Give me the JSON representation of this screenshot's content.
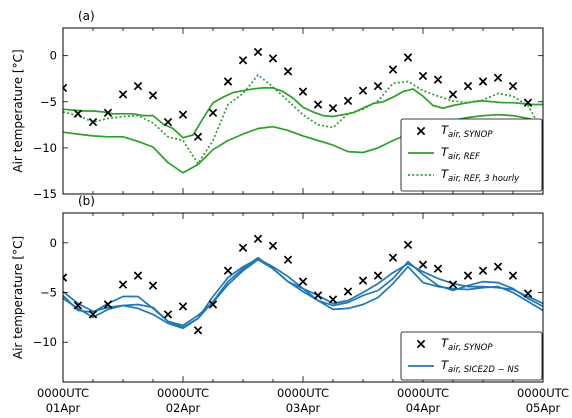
{
  "chart_data": [
    {
      "type": "line",
      "panel_label": "(a)",
      "ylabel": "Air temperature [°C]",
      "ylim": [
        -15,
        3
      ],
      "yticks": [
        0,
        -5,
        -10,
        -15
      ],
      "xlim": [
        0,
        96
      ],
      "x_ticks": [
        {
          "x": 0,
          "line1": "0000UTC",
          "line2": "01Apr"
        },
        {
          "x": 24,
          "line1": "0000UTC",
          "line2": "02Apr"
        },
        {
          "x": 48,
          "line1": "0000UTC",
          "line2": "03Apr"
        },
        {
          "x": 72,
          "line1": "0000UTC",
          "line2": "04Apr"
        },
        {
          "x": 96,
          "line1": "0000UTC",
          "line2": "05Apr"
        }
      ],
      "x_minor_ticks": [
        6,
        12,
        18,
        30,
        36,
        42,
        54,
        60,
        66,
        78,
        84,
        90
      ],
      "legend": {
        "position": "lower-right",
        "entries": [
          {
            "base": "T",
            "sub": "air, SYNOP",
            "style": "marker",
            "color": "#000000"
          },
          {
            "base": "T",
            "sub": "air, REF",
            "style": "solid",
            "color": "#2ca02c"
          },
          {
            "base": "T",
            "sub": "air, REF, 3 hourly",
            "style": "dotted",
            "color": "#2ca02c"
          }
        ]
      },
      "series": [
        {
          "style": "marker",
          "color": "#000000",
          "x": [
            0,
            3,
            6,
            9,
            12,
            15,
            18,
            21,
            24,
            27,
            30,
            33,
            36,
            39,
            42,
            45,
            48,
            51,
            54,
            57,
            60,
            63,
            66,
            69,
            72,
            75,
            78,
            81,
            84,
            87,
            90,
            93
          ],
          "y": [
            -3.5,
            -6.3,
            -7.2,
            -6.2,
            -4.2,
            -3.3,
            -4.3,
            -7.2,
            -6.4,
            -8.8,
            -6.2,
            -2.8,
            -0.5,
            0.4,
            -0.3,
            -1.7,
            -3.9,
            -5.3,
            -5.7,
            -4.9,
            -3.8,
            -3.3,
            -1.5,
            -0.2,
            -2.2,
            -2.6,
            -4.2,
            -3.3,
            -2.8,
            -2.4,
            -3.3,
            -5.1
          ]
        },
        {
          "style": "solid",
          "color": "#2ca02c",
          "x": [
            0,
            2,
            4,
            6,
            8,
            10,
            12,
            14,
            16,
            18,
            20,
            22,
            24,
            26,
            28,
            30,
            32,
            34,
            36,
            38,
            40,
            42,
            44,
            46,
            48,
            50,
            52,
            54,
            56,
            58,
            60,
            62,
            64,
            66,
            68,
            70,
            72,
            74,
            76,
            78,
            80,
            82,
            84,
            86,
            88,
            90,
            92,
            94,
            96
          ],
          "y": [
            -5.8,
            -5.9,
            -6.0,
            -6.0,
            -6.1,
            -6.3,
            -6.3,
            -6.3,
            -6.5,
            -6.5,
            -7.4,
            -7.9,
            -8.9,
            -8.6,
            -6.8,
            -5.1,
            -4.5,
            -4.0,
            -3.8,
            -3.6,
            -3.5,
            -3.5,
            -3.9,
            -4.6,
            -5.6,
            -6.1,
            -6.5,
            -6.6,
            -6.4,
            -6.2,
            -5.7,
            -5.2,
            -5.0,
            -4.5,
            -3.9,
            -3.6,
            -4.4,
            -5.4,
            -5.7,
            -5.4,
            -5.2,
            -5.0,
            -4.9,
            -5.0,
            -5.1,
            -5.1,
            -5.2,
            -5.3,
            -5.3
          ]
        },
        {
          "style": "solid",
          "color": "#2ca02c",
          "x": [
            0,
            3,
            6,
            9,
            12,
            15,
            18,
            21,
            24,
            27,
            30,
            33,
            36,
            39,
            42,
            45,
            48,
            51,
            54,
            57,
            60,
            63,
            66,
            69,
            72,
            75,
            78,
            81,
            84,
            87,
            90,
            93,
            96
          ],
          "y": [
            -8.3,
            -8.5,
            -8.7,
            -8.8,
            -8.8,
            -9.3,
            -9.9,
            -11.6,
            -12.7,
            -11.8,
            -10.2,
            -9.2,
            -8.5,
            -7.9,
            -7.7,
            -8.1,
            -8.7,
            -9.2,
            -9.7,
            -10.4,
            -10.5,
            -10.0,
            -9.2,
            -8.5,
            -8.0,
            -7.6,
            -7.0,
            -6.7,
            -6.5,
            -6.4,
            -6.5,
            -6.8,
            -7.2
          ]
        },
        {
          "style": "dotted",
          "color": "#2ca02c",
          "x": [
            0,
            3,
            6,
            9,
            12,
            15,
            18,
            21,
            24,
            27,
            30,
            33,
            36,
            39,
            42,
            45,
            48,
            51,
            54,
            57,
            60,
            63,
            66,
            69,
            72,
            75,
            78,
            81,
            84,
            87,
            90,
            93,
            96
          ],
          "y": [
            -6.1,
            -6.5,
            -7.2,
            -6.8,
            -6.6,
            -6.5,
            -7.3,
            -8.8,
            -9.2,
            -11.7,
            -9.2,
            -5.3,
            -4.1,
            -2.1,
            -3.4,
            -4.9,
            -6.4,
            -7.5,
            -7.8,
            -6.3,
            -5.8,
            -4.9,
            -3.0,
            -2.8,
            -3.8,
            -4.4,
            -4.9,
            -5.1,
            -4.8,
            -4.1,
            -4.4,
            -5.4,
            -8.3
          ]
        }
      ]
    },
    {
      "type": "line",
      "panel_label": "(b)",
      "ylabel": "Air temperature [°C]",
      "ylim": [
        -14,
        3
      ],
      "yticks": [
        0,
        -5,
        -10
      ],
      "xlim": [
        0,
        96
      ],
      "x_ticks": [
        {
          "x": 0,
          "line1": "0000UTC",
          "line2": "01Apr"
        },
        {
          "x": 24,
          "line1": "0000UTC",
          "line2": "02Apr"
        },
        {
          "x": 48,
          "line1": "0000UTC",
          "line2": "03Apr"
        },
        {
          "x": 72,
          "line1": "0000UTC",
          "line2": "04Apr"
        },
        {
          "x": 96,
          "line1": "0000UTC",
          "line2": "05Apr"
        }
      ],
      "x_minor_ticks": [
        6,
        12,
        18,
        30,
        36,
        42,
        54,
        60,
        66,
        78,
        84,
        90
      ],
      "legend": {
        "position": "lower-right",
        "entries": [
          {
            "base": "T",
            "sub": "air, SYNOP",
            "style": "marker",
            "color": "#000000"
          },
          {
            "base": "T",
            "sub": "air, SICE2D − NS",
            "style": "solid",
            "color": "#1f77b4"
          }
        ]
      },
      "series": [
        {
          "style": "marker",
          "color": "#000000",
          "x": [
            0,
            3,
            6,
            9,
            12,
            15,
            18,
            21,
            24,
            27,
            30,
            33,
            36,
            39,
            42,
            45,
            48,
            51,
            54,
            57,
            60,
            63,
            66,
            69,
            72,
            75,
            78,
            81,
            84,
            87,
            90,
            93
          ],
          "y": [
            -3.5,
            -6.3,
            -7.2,
            -6.2,
            -4.2,
            -3.3,
            -4.3,
            -7.2,
            -6.4,
            -8.8,
            -6.2,
            -2.8,
            -0.5,
            0.4,
            -0.3,
            -1.7,
            -3.9,
            -5.3,
            -5.7,
            -4.9,
            -3.8,
            -3.3,
            -1.5,
            -0.2,
            -2.2,
            -2.6,
            -4.2,
            -3.3,
            -2.8,
            -2.4,
            -3.3,
            -5.1
          ]
        },
        {
          "style": "solid",
          "color": "#1f77b4",
          "x": [
            0,
            3,
            6,
            9,
            12,
            15,
            18,
            21,
            24,
            27,
            30,
            33,
            36,
            39,
            42,
            45,
            48,
            51,
            54,
            57,
            60,
            63,
            66,
            69,
            72,
            75,
            78,
            81,
            84,
            87,
            90,
            93,
            96
          ],
          "y": [
            -4.9,
            -6.1,
            -6.9,
            -6.5,
            -6.3,
            -6.2,
            -6.5,
            -7.9,
            -8.3,
            -7.3,
            -6.0,
            -4.2,
            -2.8,
            -1.7,
            -2.6,
            -3.9,
            -4.6,
            -5.3,
            -6.1,
            -5.8,
            -5.0,
            -4.1,
            -3.0,
            -2.1,
            -2.9,
            -3.6,
            -4.1,
            -4.4,
            -4.4,
            -4.5,
            -4.7,
            -5.4,
            -6.1
          ]
        },
        {
          "style": "solid",
          "color": "#1f77b4",
          "x": [
            0,
            3,
            6,
            9,
            12,
            15,
            18,
            21,
            24,
            27,
            30,
            33,
            36,
            39,
            42,
            45,
            48,
            51,
            54,
            57,
            60,
            63,
            66,
            69,
            72,
            75,
            78,
            81,
            84,
            87,
            90,
            93,
            96
          ],
          "y": [
            -5.6,
            -6.6,
            -7.5,
            -6.7,
            -6.3,
            -6.6,
            -7.2,
            -8.1,
            -8.6,
            -7.6,
            -5.9,
            -3.9,
            -2.6,
            -1.5,
            -2.6,
            -3.9,
            -4.9,
            -5.8,
            -6.7,
            -6.6,
            -6.2,
            -5.5,
            -4.1,
            -2.4,
            -4.0,
            -4.4,
            -4.6,
            -4.7,
            -4.5,
            -4.4,
            -5.0,
            -5.9,
            -6.8
          ]
        },
        {
          "style": "solid",
          "color": "#1f77b4",
          "x": [
            0,
            3,
            6,
            9,
            12,
            15,
            18,
            21,
            24,
            27,
            30,
            33,
            36,
            39,
            42,
            45,
            48,
            51,
            54,
            57,
            60,
            63,
            66,
            69,
            72,
            75,
            78,
            81,
            84,
            87,
            90,
            93,
            96
          ],
          "y": [
            -5.3,
            -6.8,
            -7.0,
            -6.1,
            -5.4,
            -5.4,
            -6.6,
            -7.9,
            -8.5,
            -7.6,
            -5.4,
            -3.5,
            -2.4,
            -1.6,
            -2.4,
            -3.4,
            -4.6,
            -5.8,
            -6.3,
            -6.0,
            -5.3,
            -4.8,
            -3.6,
            -1.9,
            -3.2,
            -4.3,
            -4.8,
            -4.3,
            -3.9,
            -4.0,
            -4.6,
            -5.6,
            -6.4
          ]
        }
      ]
    }
  ]
}
